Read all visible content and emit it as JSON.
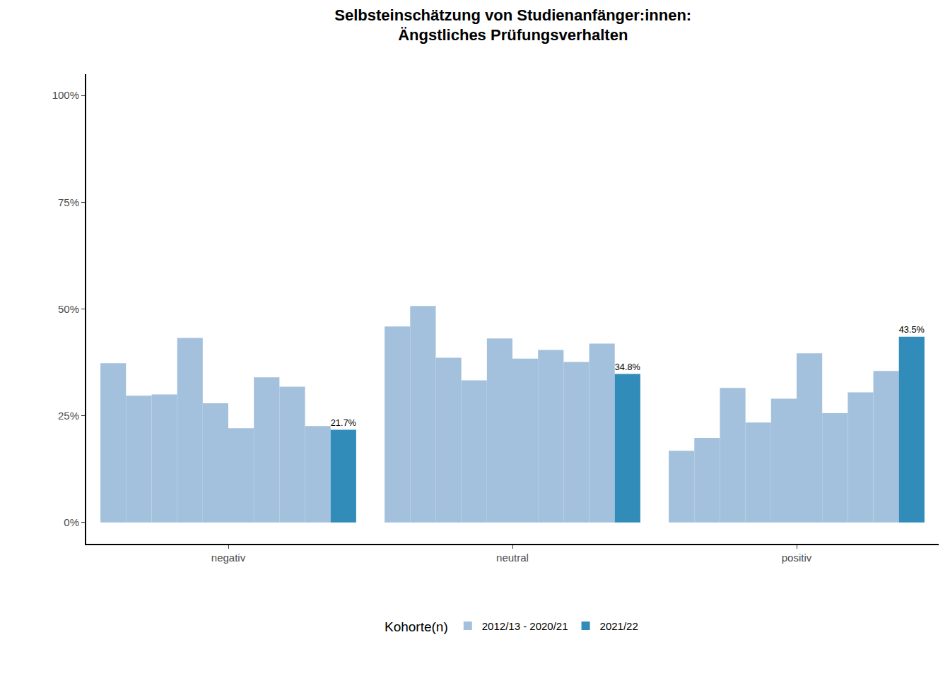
{
  "chart_data": {
    "type": "bar",
    "title": "Selbsteinschätzung von Studienanfänger:innen:\nÄngstliches Prüfungsverhalten",
    "categories": [
      "negativ",
      "neutral",
      "positiv"
    ],
    "legend_title": "Kohorte(n)",
    "legend": "bottom",
    "grid": false,
    "series": [
      {
        "name": "2012/13 - 2020/21",
        "color": "#a3c1dd",
        "values": [
          [
            37.3,
            29.7,
            30.0,
            43.2,
            27.9,
            22.1,
            34.0,
            31.8,
            22.6
          ],
          [
            45.9,
            50.7,
            38.6,
            33.3,
            43.1,
            38.4,
            40.4,
            37.6,
            41.9
          ],
          [
            16.8,
            19.8,
            31.5,
            23.4,
            29.0,
            39.6,
            25.6,
            30.5,
            35.5
          ]
        ]
      },
      {
        "name": "2021/22",
        "color": "#318cb9",
        "values": [
          21.7,
          34.8,
          43.5
        ],
        "data_labels": true,
        "value_labels": [
          "21.7%",
          "34.8%",
          "43.5%"
        ]
      }
    ],
    "ylim": [
      -5,
      105
    ],
    "yticks": [
      {
        "value": 0,
        "label": "0%"
      },
      {
        "value": 25,
        "label": "25%"
      },
      {
        "value": 50,
        "label": "50%"
      },
      {
        "value": 75,
        "label": "75%"
      },
      {
        "value": 100,
        "label": "100%"
      }
    ]
  }
}
